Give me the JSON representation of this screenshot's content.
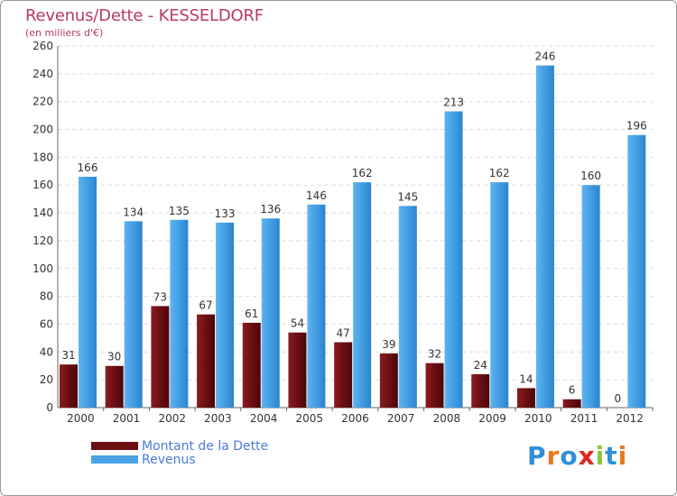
{
  "header": {
    "title": "Revenus/Dette - KESSELDORF",
    "subtitle": "(en milliers d'€)"
  },
  "legend": {
    "items": [
      {
        "label": "Montant de la Dette",
        "color": "#6b0f12"
      },
      {
        "label": "Revenus",
        "color": "#4aa3e6"
      }
    ]
  },
  "logo": {
    "text": "Proxiti",
    "letters": [
      {
        "ch": "P",
        "color": "#2f8fd8"
      },
      {
        "ch": "r",
        "color": "#e87a1a"
      },
      {
        "ch": "o",
        "color": "#2f8fd8"
      },
      {
        "ch": "x",
        "color": "#e2271f"
      },
      {
        "ch": "i",
        "color": "#8cc63f"
      },
      {
        "ch": "t",
        "color": "#2f8fd8"
      },
      {
        "ch": "i",
        "color": "#e87a1a"
      }
    ]
  },
  "chart_data": {
    "type": "bar",
    "title": "Revenus/Dette - KESSELDORF",
    "subtitle": "(en milliers d'€)",
    "categories": [
      "2000",
      "2001",
      "2002",
      "2003",
      "2004",
      "2005",
      "2006",
      "2007",
      "2008",
      "2009",
      "2010",
      "2011",
      "2012"
    ],
    "series": [
      {
        "name": "Montant de la Dette",
        "color": "#6b0f12",
        "values": [
          31,
          30,
          73,
          67,
          61,
          54,
          47,
          39,
          32,
          24,
          14,
          6,
          0
        ]
      },
      {
        "name": "Revenus",
        "color": "#4aa3e6",
        "values": [
          166,
          134,
          135,
          133,
          136,
          146,
          162,
          145,
          213,
          162,
          246,
          160,
          196
        ]
      }
    ],
    "ylim": [
      0,
      260
    ],
    "yticks": [
      0,
      20,
      40,
      60,
      80,
      100,
      120,
      140,
      160,
      180,
      200,
      220,
      240,
      260
    ],
    "grid": true,
    "legend_position": "bottom-left"
  }
}
